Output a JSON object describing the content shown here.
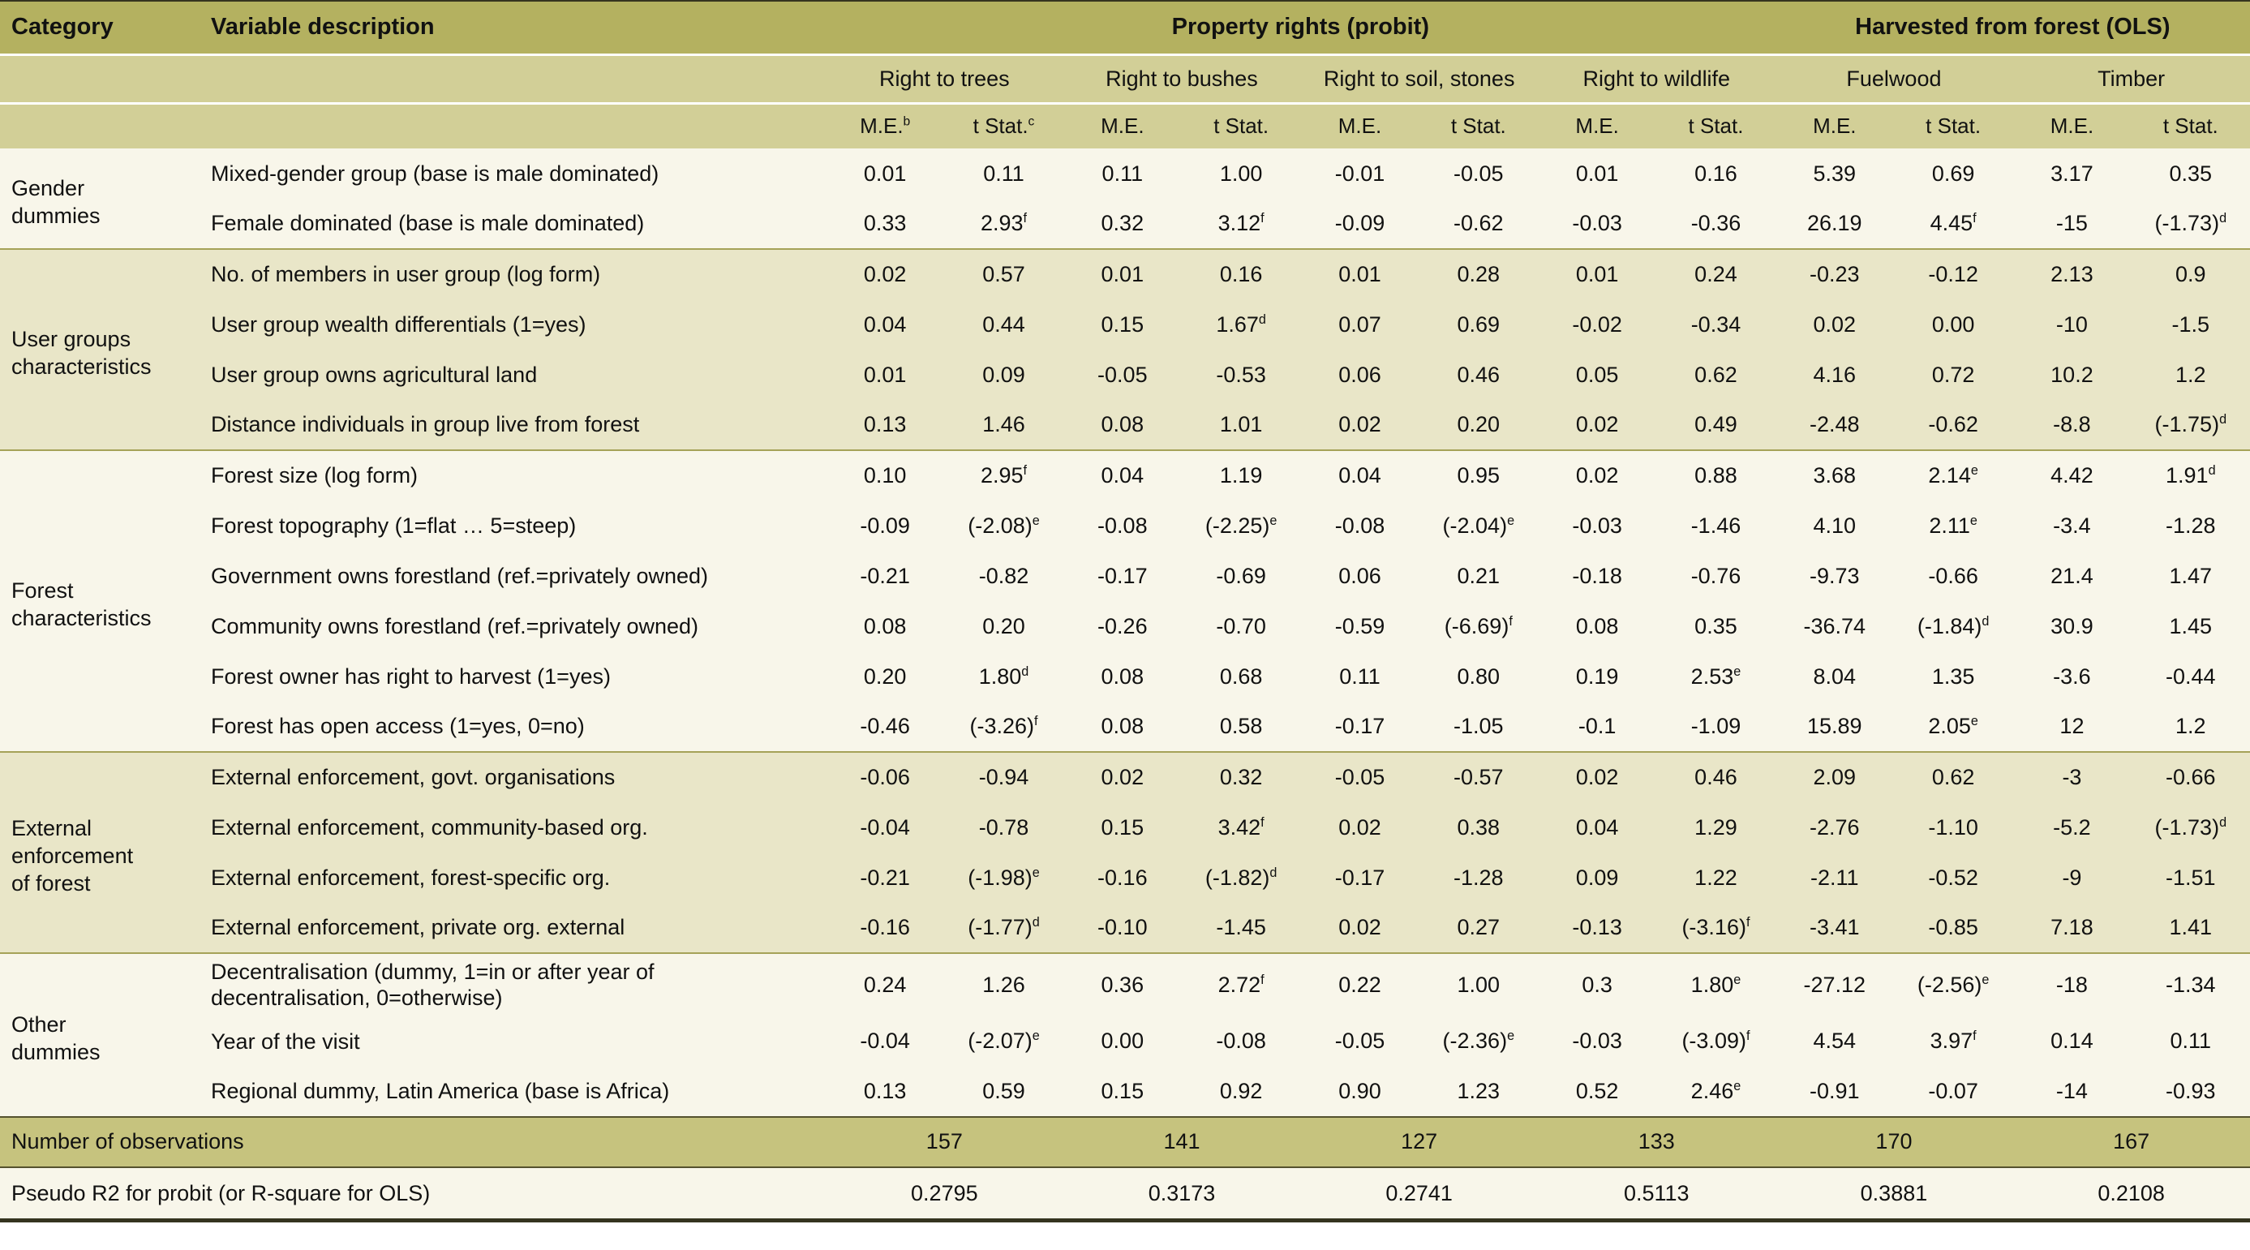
{
  "colors": {
    "header_dark": "#b4b160",
    "header_light": "#d2cf97",
    "row_cream": "#f8f6ea",
    "row_beige": "#e9e6c8",
    "footer_olive": "#c6c37e",
    "divider": "#a5a258",
    "divider_dark": "#55522e",
    "border_dark": "#35341f",
    "text": "#111111"
  },
  "header": {
    "category": "Category",
    "variable": "Variable description",
    "group_probit": "Property rights (probit)",
    "group_ols": "Harvested from forest (OLS)",
    "subgroups": [
      "Right to trees",
      "Right to bushes",
      "Right to soil, stones",
      "Right to wildlife",
      "Fuelwood",
      "Timber"
    ],
    "stat_cols": [
      "M.E.^b",
      "t Stat.^c",
      "M.E.",
      "t Stat.",
      "M.E.",
      "t Stat.",
      "M.E.",
      "t Stat.",
      "M.E.",
      "t Stat.",
      "M.E.",
      "t Stat."
    ]
  },
  "groups": [
    {
      "category": "Gender\ndummies",
      "shade": "cream",
      "rows": [
        {
          "label": "Mixed-gender group (base is male dominated)",
          "values": [
            "0.01",
            "0.11",
            "0.11",
            "1.00",
            "-0.01",
            "-0.05",
            "0.01",
            "0.16",
            "5.39",
            "0.69",
            "3.17",
            "0.35"
          ]
        },
        {
          "label": "Female dominated  (base is male dominated)",
          "values": [
            "0.33",
            "2.93^f",
            "0.32",
            "3.12^f",
            "-0.09",
            "-0.62",
            "-0.03",
            "-0.36",
            "26.19",
            "4.45^f",
            "-15",
            "(-1.73)^d"
          ]
        }
      ]
    },
    {
      "category": "User groups\ncharacteristics",
      "shade": "beige",
      "rows": [
        {
          "label": "No. of members in user group (log form)",
          "values": [
            "0.02",
            "0.57",
            "0.01",
            "0.16",
            "0.01",
            "0.28",
            "0.01",
            "0.24",
            "-0.23",
            "-0.12",
            "2.13",
            "0.9"
          ]
        },
        {
          "label": "User group wealth differentials (1=yes)",
          "values": [
            "0.04",
            "0.44",
            "0.15",
            "1.67^d",
            "0.07",
            "0.69",
            "-0.02",
            "-0.34",
            "0.02",
            "0.00",
            "-10",
            "-1.5"
          ]
        },
        {
          "label": "User group owns agricultural land",
          "values": [
            "0.01",
            "0.09",
            "-0.05",
            "-0.53",
            "0.06",
            "0.46",
            "0.05",
            "0.62",
            "4.16",
            "0.72",
            "10.2",
            "1.2"
          ]
        },
        {
          "label": "Distance individuals in group live from forest",
          "values": [
            "0.13",
            "1.46",
            "0.08",
            "1.01",
            "0.02",
            "0.20",
            "0.02",
            "0.49",
            "-2.48",
            "-0.62",
            "-8.8",
            "(-1.75)^d"
          ]
        }
      ]
    },
    {
      "category": "Forest\ncharacteristics",
      "shade": "cream",
      "rows": [
        {
          "label": "Forest size (log form)",
          "values": [
            "0.10",
            "2.95^f",
            "0.04",
            "1.19",
            "0.04",
            "0.95",
            "0.02",
            "0.88",
            "3.68",
            "2.14^e",
            "4.42",
            "1.91^d"
          ]
        },
        {
          "label": "Forest topography (1=flat … 5=steep)",
          "values": [
            "-0.09",
            "(-2.08)^e",
            "-0.08",
            "(-2.25)^e",
            "-0.08",
            "(-2.04)^e",
            "-0.03",
            "-1.46",
            "4.10",
            "2.11^e",
            "-3.4",
            "-1.28"
          ]
        },
        {
          "label": "Government owns forestland (ref.=privately owned)",
          "values": [
            "-0.21",
            "-0.82",
            "-0.17",
            "-0.69",
            "0.06",
            "0.21",
            "-0.18",
            "-0.76",
            "-9.73",
            "-0.66",
            "21.4",
            "1.47"
          ]
        },
        {
          "label": "Community owns forestland (ref.=privately owned)",
          "values": [
            "0.08",
            "0.20",
            "-0.26",
            "-0.70",
            "-0.59",
            "(-6.69)^f",
            "0.08",
            "0.35",
            "-36.74",
            "(-1.84)^d",
            "30.9",
            "1.45"
          ]
        },
        {
          "label": "Forest owner has right to harvest (1=yes)",
          "values": [
            "0.20",
            "1.80^d",
            "0.08",
            "0.68",
            "0.11",
            "0.80",
            "0.19",
            "2.53^e",
            "8.04",
            "1.35",
            "-3.6",
            "-0.44"
          ]
        },
        {
          "label": "Forest has open access (1=yes, 0=no)",
          "values": [
            "-0.46",
            "(-3.26)^f",
            "0.08",
            "0.58",
            "-0.17",
            "-1.05",
            "-0.1",
            "-1.09",
            "15.89",
            "2.05^e",
            "12",
            "1.2"
          ]
        }
      ]
    },
    {
      "category": "External\nenforcement\nof forest",
      "shade": "beige",
      "rows": [
        {
          "label": "External enforcement, govt. organisations",
          "values": [
            "-0.06",
            "-0.94",
            "0.02",
            "0.32",
            "-0.05",
            "-0.57",
            "0.02",
            "0.46",
            "2.09",
            "0.62",
            "-3",
            "-0.66"
          ]
        },
        {
          "label": "External enforcement, community-based org.",
          "values": [
            "-0.04",
            "-0.78",
            "0.15",
            "3.42^f",
            "0.02",
            "0.38",
            "0.04",
            "1.29",
            "-2.76",
            "-1.10",
            "-5.2",
            "(-1.73)^d"
          ]
        },
        {
          "label": "External enforcement, forest-specific org.",
          "values": [
            "-0.21",
            "(-1.98)^e",
            "-0.16",
            "(-1.82)^d",
            "-0.17",
            "-1.28",
            "0.09",
            "1.22",
            "-2.11",
            "-0.52",
            "-9",
            "-1.51"
          ]
        },
        {
          "label": "External enforcement, private org. external",
          "values": [
            "-0.16",
            "(-1.77)^d",
            "-0.10",
            "-1.45",
            "0.02",
            "0.27",
            "-0.13",
            "(-3.16)^f",
            "-3.41",
            "-0.85",
            "7.18",
            "1.41"
          ]
        }
      ]
    },
    {
      "category": "Other\ndummies",
      "shade": "cream",
      "rows": [
        {
          "label": "Decentralisation (dummy, 1=in or after year of decentralisation, 0=otherwise)",
          "values": [
            "0.24",
            "1.26",
            "0.36",
            "2.72^f",
            "0.22",
            "1.00",
            "0.3",
            "1.80^e",
            "-27.12",
            "(-2.56)^e",
            "-18",
            "-1.34"
          ]
        },
        {
          "label": "Year of the visit",
          "values": [
            "-0.04",
            "(-2.07)^e",
            "0.00",
            "-0.08",
            "-0.05",
            "(-2.36)^e",
            "-0.03",
            "(-3.09)^f",
            "4.54",
            "3.97^f",
            "0.14",
            "0.11"
          ]
        },
        {
          "label": "Regional dummy, Latin America (base is Africa)",
          "values": [
            "0.13",
            "0.59",
            "0.15",
            "0.92",
            "0.90",
            "1.23",
            "0.52",
            "2.46^e",
            "-0.91",
            "-0.07",
            "-14",
            "-0.93"
          ]
        }
      ]
    }
  ],
  "footer": {
    "observations_label": "Number of observations",
    "observations": [
      "157",
      "141",
      "127",
      "133",
      "170",
      "167"
    ],
    "r2_label": "Pseudo R2 for probit (or R-square for OLS)",
    "r2": [
      "0.2795",
      "0.3173",
      "0.2741",
      "0.5113",
      "0.3881",
      "0.2108"
    ]
  }
}
